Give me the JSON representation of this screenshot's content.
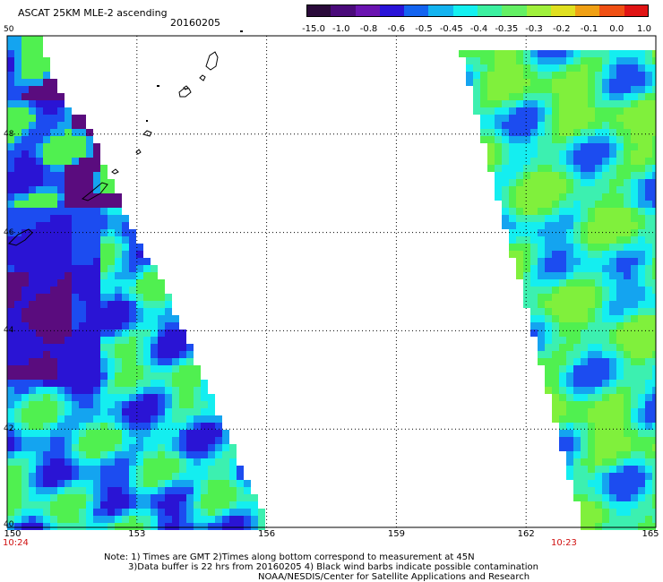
{
  "header": {
    "title": "ASCAT 25KM MLE-2 ascending",
    "date": "20160205"
  },
  "colorbar": {
    "labels": [
      "-15.0",
      "-1.0",
      "-0.8",
      "-0.6",
      "-0.5",
      "-0.45",
      "-0.4",
      "-0.35",
      "-0.3",
      "-0.2",
      "-0.1",
      "0.0",
      "1.0"
    ],
    "colors": [
      "#2a0a3a",
      "#4a0a7a",
      "#6a14b0",
      "#2a14d8",
      "#1464f0",
      "#14b4f0",
      "#14f0f0",
      "#3cf0a0",
      "#64f064",
      "#a0f03c",
      "#e0e020",
      "#f0a014",
      "#f05014",
      "#e01414"
    ]
  },
  "map": {
    "lon_ticks": [
      "150",
      "153",
      "156",
      "159",
      "162",
      "165"
    ],
    "lat_ticks": [
      "50",
      "48",
      "46",
      "44",
      "42",
      "40"
    ],
    "lon_range": [
      150,
      165
    ],
    "lat_range": [
      40,
      50
    ],
    "grid": true,
    "times": {
      "left": "10:24",
      "right": "10:23"
    }
  },
  "notes": {
    "line1": "Note: 1) Times are GMT 2)Times along bottom correspond to measurement at 45N",
    "line2": "3)Data buffer is 22 hrs from 20160205 4) Black wind barbs indicate possible contamination",
    "line3": "NOAA/NESDIS/Center for Satellite Applications and Research"
  }
}
